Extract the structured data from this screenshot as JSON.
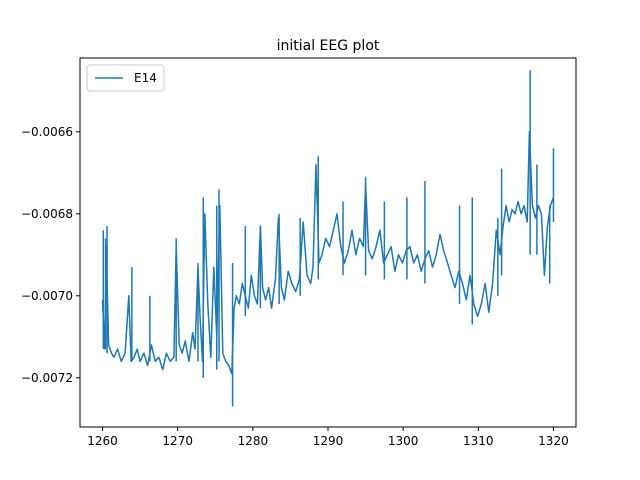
{
  "chart_data": {
    "type": "line",
    "title": "initial EEG plot",
    "xlabel": "",
    "ylabel": "",
    "xlim": [
      1257,
      1323
    ],
    "ylim": [
      -0.00732,
      -0.00642
    ],
    "x_ticks": [
      1260,
      1270,
      1280,
      1290,
      1300,
      1310,
      1320
    ],
    "x_tick_labels": [
      "1260",
      "1270",
      "1280",
      "1290",
      "1300",
      "1310",
      "1320"
    ],
    "y_ticks": [
      -0.0072,
      -0.007,
      -0.0068,
      -0.0066
    ],
    "y_tick_labels": [
      "−0.0072",
      "−0.0070",
      "−0.0068",
      "−0.0066"
    ],
    "grid": false,
    "legend_position": "top-left",
    "series": [
      {
        "name": "E14",
        "color": "#1f77b4",
        "x": [
          1260.0,
          1260.3,
          1260.5,
          1260.8,
          1261.2,
          1261.5,
          1262.0,
          1262.5,
          1263.0,
          1263.5,
          1263.8,
          1264.2,
          1264.6,
          1265.0,
          1265.5,
          1266.0,
          1266.5,
          1267.0,
          1267.5,
          1268.0,
          1268.5,
          1269.0,
          1269.5,
          1269.8,
          1270.2,
          1270.6,
          1271.0,
          1271.5,
          1272.0,
          1272.3,
          1272.7,
          1273.0,
          1273.3,
          1273.6,
          1274.0,
          1274.4,
          1274.8,
          1275.2,
          1275.6,
          1276.0,
          1276.4,
          1276.8,
          1277.2,
          1277.5,
          1277.8,
          1278.2,
          1278.6,
          1279.0,
          1279.4,
          1279.8,
          1280.2,
          1280.6,
          1281.0,
          1281.3,
          1281.7,
          1282.1,
          1282.5,
          1283.0,
          1283.4,
          1283.8,
          1284.2,
          1284.7,
          1285.2,
          1285.7,
          1286.2,
          1286.7,
          1287.2,
          1287.7,
          1288.0,
          1288.4,
          1288.8,
          1289.2,
          1289.7,
          1290.2,
          1290.7,
          1291.2,
          1291.7,
          1292.2,
          1292.7,
          1293.2,
          1293.7,
          1294.2,
          1294.7,
          1295.0,
          1295.4,
          1295.9,
          1296.4,
          1296.9,
          1297.4,
          1297.9,
          1298.4,
          1298.9,
          1299.4,
          1299.9,
          1300.4,
          1300.9,
          1301.4,
          1301.9,
          1302.4,
          1302.9,
          1303.4,
          1303.9,
          1304.4,
          1304.9,
          1305.4,
          1305.9,
          1306.4,
          1306.9,
          1307.4,
          1307.9,
          1308.4,
          1308.9,
          1309.4,
          1309.9,
          1310.4,
          1310.9,
          1311.4,
          1311.9,
          1312.4,
          1312.9,
          1313.3,
          1313.7,
          1314.1,
          1314.5,
          1314.9,
          1315.3,
          1315.7,
          1316.1,
          1316.5,
          1316.8,
          1317.2,
          1317.6,
          1318.0,
          1318.4,
          1318.8,
          1319.2,
          1319.6,
          1320.0
        ],
        "y": [
          -0.00701,
          -0.00713,
          -0.00688,
          -0.00712,
          -0.00714,
          -0.00715,
          -0.00713,
          -0.00716,
          -0.00714,
          -0.007,
          -0.00716,
          -0.00715,
          -0.00713,
          -0.00716,
          -0.00714,
          -0.00717,
          -0.00712,
          -0.00716,
          -0.00715,
          -0.00718,
          -0.00714,
          -0.00716,
          -0.00715,
          -0.00688,
          -0.00712,
          -0.00714,
          -0.00711,
          -0.00716,
          -0.00709,
          -0.00713,
          -0.00693,
          -0.00706,
          -0.00716,
          -0.0068,
          -0.00702,
          -0.00715,
          -0.00693,
          -0.0071,
          -0.00678,
          -0.00714,
          -0.00716,
          -0.00717,
          -0.00719,
          -0.00703,
          -0.007,
          -0.00702,
          -0.00697,
          -0.007,
          -0.00703,
          -0.00695,
          -0.007,
          -0.00702,
          -0.00683,
          -0.00698,
          -0.00701,
          -0.00698,
          -0.00703,
          -0.00696,
          -0.00681,
          -0.00698,
          -0.00701,
          -0.00694,
          -0.00697,
          -0.00699,
          -0.00696,
          -0.00682,
          -0.00695,
          -0.00697,
          -0.00693,
          -0.00668,
          -0.00692,
          -0.0069,
          -0.00686,
          -0.00688,
          -0.00684,
          -0.0068,
          -0.00688,
          -0.00692,
          -0.00689,
          -0.00684,
          -0.0069,
          -0.00686,
          -0.00688,
          -0.00673,
          -0.00689,
          -0.00691,
          -0.00688,
          -0.00684,
          -0.00692,
          -0.0069,
          -0.00688,
          -0.00694,
          -0.0069,
          -0.00692,
          -0.00689,
          -0.00688,
          -0.00692,
          -0.0069,
          -0.00694,
          -0.00691,
          -0.00689,
          -0.00693,
          -0.0069,
          -0.00685,
          -0.00689,
          -0.00692,
          -0.00695,
          -0.00698,
          -0.00694,
          -0.00697,
          -0.00701,
          -0.00695,
          -0.00702,
          -0.00705,
          -0.00702,
          -0.00697,
          -0.00704,
          -0.00697,
          -0.00684,
          -0.0069,
          -0.00683,
          -0.00678,
          -0.00682,
          -0.00679,
          -0.0068,
          -0.00677,
          -0.0068,
          -0.00678,
          -0.00682,
          -0.0066,
          -0.00678,
          -0.00681,
          -0.00678,
          -0.0068,
          -0.00695,
          -0.00683,
          -0.00678,
          -0.00676
        ]
      }
    ],
    "spikes": [
      {
        "x": 1260.1,
        "y0": -0.00713,
        "y1": -0.00684
      },
      {
        "x": 1260.4,
        "y0": -0.00713,
        "y1": -0.00686
      },
      {
        "x": 1260.6,
        "y0": -0.00714,
        "y1": -0.00683
      },
      {
        "x": 1263.9,
        "y0": -0.00716,
        "y1": -0.00693
      },
      {
        "x": 1266.3,
        "y0": -0.00716,
        "y1": -0.007
      },
      {
        "x": 1269.8,
        "y0": -0.00716,
        "y1": -0.00686
      },
      {
        "x": 1272.7,
        "y0": -0.00716,
        "y1": -0.00692
      },
      {
        "x": 1273.4,
        "y0": -0.0072,
        "y1": -0.00676
      },
      {
        "x": 1275.2,
        "y0": -0.00718,
        "y1": -0.00678
      },
      {
        "x": 1275.5,
        "y0": -0.00716,
        "y1": -0.00674
      },
      {
        "x": 1277.3,
        "y0": -0.00727,
        "y1": -0.00692
      },
      {
        "x": 1279.0,
        "y0": -0.00705,
        "y1": -0.00683
      },
      {
        "x": 1281.0,
        "y0": -0.00703,
        "y1": -0.00683
      },
      {
        "x": 1283.5,
        "y0": -0.00702,
        "y1": -0.0068
      },
      {
        "x": 1286.3,
        "y0": -0.007,
        "y1": -0.00681
      },
      {
        "x": 1288.7,
        "y0": -0.00696,
        "y1": -0.00666
      },
      {
        "x": 1292.0,
        "y0": -0.00695,
        "y1": -0.00677
      },
      {
        "x": 1295.0,
        "y0": -0.00695,
        "y1": -0.00671
      },
      {
        "x": 1297.5,
        "y0": -0.00696,
        "y1": -0.00677
      },
      {
        "x": 1300.5,
        "y0": -0.00696,
        "y1": -0.00676
      },
      {
        "x": 1302.9,
        "y0": -0.00697,
        "y1": -0.00672
      },
      {
        "x": 1307.5,
        "y0": -0.00702,
        "y1": -0.00678
      },
      {
        "x": 1309.2,
        "y0": -0.00707,
        "y1": -0.00676
      },
      {
        "x": 1312.6,
        "y0": -0.007,
        "y1": -0.00681
      },
      {
        "x": 1313.1,
        "y0": -0.00695,
        "y1": -0.00669
      },
      {
        "x": 1316.9,
        "y0": -0.0069,
        "y1": -0.00645
      },
      {
        "x": 1317.8,
        "y0": -0.0069,
        "y1": -0.00668
      },
      {
        "x": 1319.5,
        "y0": -0.00697,
        "y1": -0.00678
      },
      {
        "x": 1320.0,
        "y0": -0.00682,
        "y1": -0.00664
      }
    ]
  }
}
